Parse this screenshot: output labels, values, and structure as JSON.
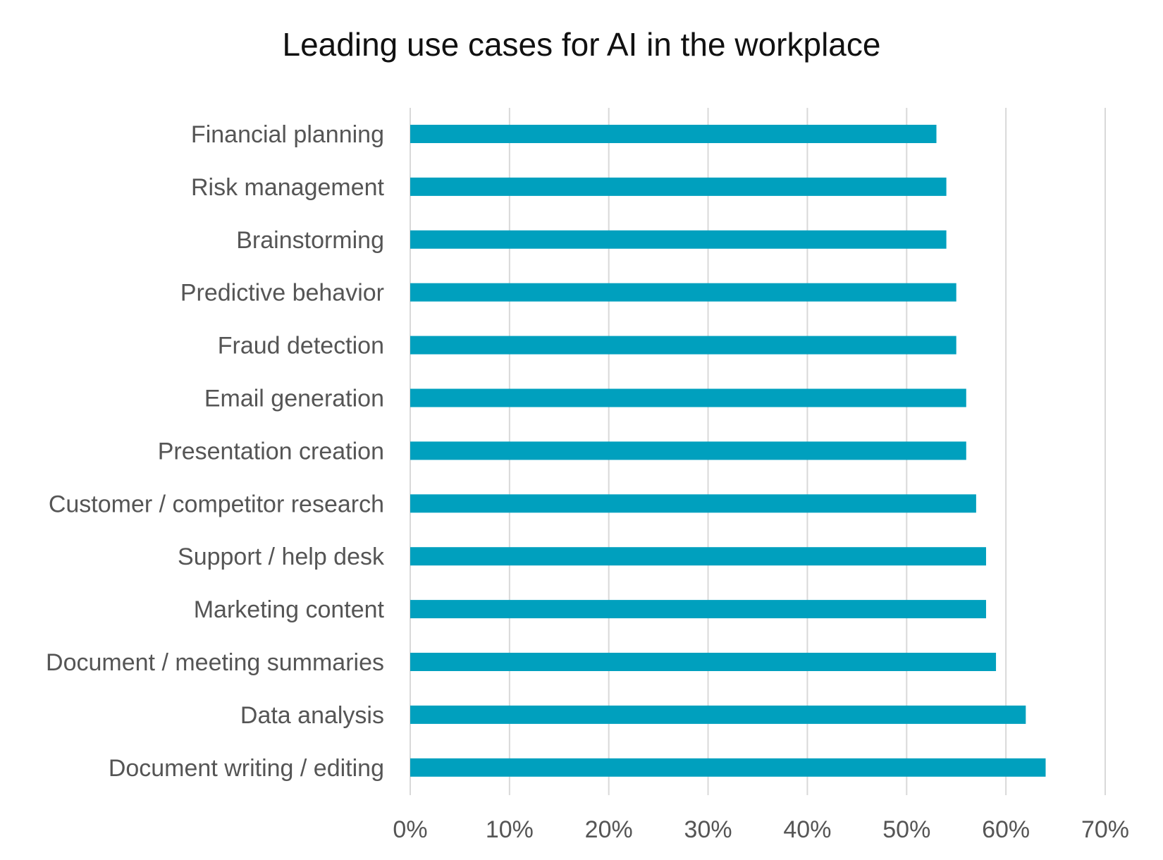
{
  "chart_data": {
    "type": "bar",
    "orientation": "horizontal",
    "title": "Leading use cases for AI in the workplace",
    "xlabel": "",
    "ylabel": "",
    "xlim": [
      0,
      70
    ],
    "x_ticks": [
      0,
      10,
      20,
      30,
      40,
      50,
      60,
      70
    ],
    "x_tick_labels": [
      "0%",
      "10%",
      "20%",
      "30%",
      "40%",
      "50%",
      "60%",
      "70%"
    ],
    "grid": true,
    "legend": "none",
    "bar_color": "#00A0BE",
    "grid_color": "#D9D9D9",
    "categories": [
      "Financial planning",
      "Risk management",
      "Brainstorming",
      "Predictive behavior",
      "Fraud detection",
      "Email generation",
      "Presentation creation",
      "Customer / competitor research",
      "Support / help desk",
      "Marketing content",
      "Document / meeting summaries",
      "Data analysis",
      "Document writing / editing"
    ],
    "values": [
      53,
      54,
      54,
      55,
      55,
      56,
      56,
      57,
      58,
      58,
      59,
      62,
      64
    ]
  }
}
